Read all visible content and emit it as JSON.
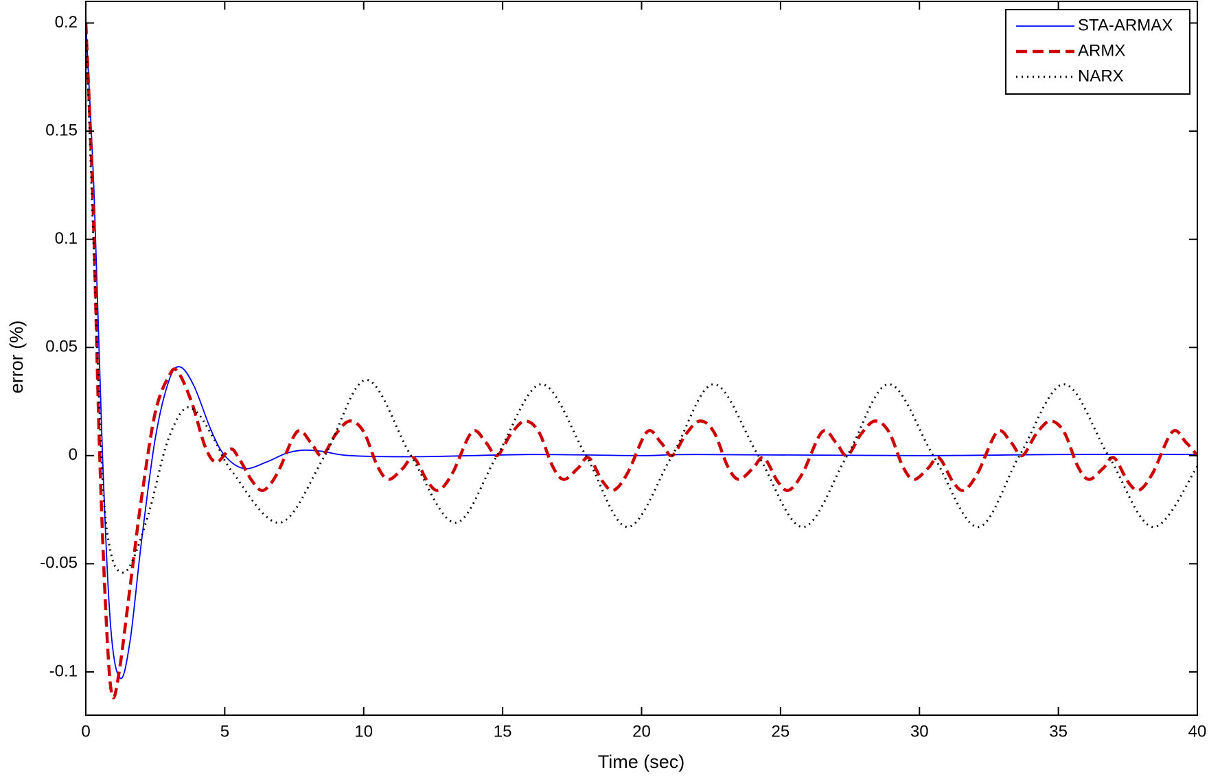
{
  "chart_data": {
    "type": "line",
    "x_label": "Time (sec)",
    "y_label": "error (%)",
    "xlim": [
      0,
      40
    ],
    "ylim": [
      -0.12,
      0.21
    ],
    "xticks": [
      0,
      5,
      10,
      15,
      20,
      25,
      30,
      35,
      40
    ],
    "yticks": [
      -0.1,
      -0.05,
      0,
      0.05,
      0.1,
      0.15,
      0.2
    ],
    "grid": false,
    "legend": "upper right",
    "series": [
      {
        "name": "STA-ARMAX",
        "color": "#0000ff",
        "style": "solid",
        "x": [
          0,
          0.3,
          0.6,
          0.9,
          1.25,
          1.6,
          2.0,
          2.5,
          3.0,
          3.4,
          3.9,
          4.5,
          5.0,
          5.7,
          6.5,
          7.2,
          7.8,
          8.5,
          9.5,
          12,
          16,
          20,
          22,
          30,
          35,
          40
        ],
        "values": [
          0.2,
          0.12,
          0.0,
          -0.08,
          -0.103,
          -0.085,
          -0.04,
          0.008,
          0.035,
          0.041,
          0.032,
          0.012,
          0.0,
          -0.006,
          -0.003,
          0.001,
          0.0025,
          0.002,
          0.0,
          -0.0005,
          0.0005,
          0.0,
          0.0005,
          0.0,
          0.0005,
          0.0005
        ]
      },
      {
        "name": "ARMX",
        "color": "#cc0000",
        "style": "dashed",
        "x": [
          0,
          0.25,
          0.5,
          0.75,
          0.95,
          1.2,
          1.6,
          2.0,
          2.5,
          3.0,
          3.3,
          3.8,
          4.3,
          4.7,
          5.2,
          5.5,
          6.0,
          6.4,
          6.9,
          7.6,
          8.1,
          8.5,
          9.0,
          9.5,
          10.0,
          10.5,
          10.9,
          11.4,
          11.8,
          12.3,
          12.7,
          13.2,
          13.9,
          14.4,
          14.8,
          15.3,
          15.8,
          16.3,
          16.8,
          17.2,
          17.7,
          18.1,
          18.6,
          19.0,
          19.5,
          20.2,
          20.7,
          21.1,
          21.6,
          22.1,
          22.6,
          23.1,
          23.5,
          24.0,
          24.4,
          24.9,
          25.3,
          25.8,
          26.5,
          27.0,
          27.4,
          27.9,
          28.4,
          28.9,
          29.4,
          29.8,
          30.3,
          30.7,
          31.2,
          31.6,
          32.1,
          32.8,
          33.3,
          33.7,
          34.2,
          34.7,
          35.2,
          35.7,
          36.1,
          36.6,
          37.0,
          37.5,
          37.9,
          38.4,
          39.1,
          39.6,
          40.0
        ],
        "values": [
          0.2,
          0.12,
          0.0,
          -0.08,
          -0.111,
          -0.1,
          -0.06,
          -0.02,
          0.02,
          0.037,
          0.039,
          0.025,
          0.004,
          -0.003,
          0.003,
          -0.001,
          -0.012,
          -0.016,
          -0.008,
          0.011,
          0.006,
          0.0,
          0.01,
          0.016,
          0.011,
          -0.005,
          -0.011,
          -0.006,
          -0.001,
          -0.012,
          -0.016,
          -0.008,
          0.011,
          0.006,
          0.0,
          0.01,
          0.016,
          0.011,
          -0.005,
          -0.011,
          -0.006,
          -0.001,
          -0.012,
          -0.016,
          -0.008,
          0.011,
          0.006,
          0.0,
          0.01,
          0.016,
          0.011,
          -0.005,
          -0.011,
          -0.006,
          -0.001,
          -0.012,
          -0.016,
          -0.008,
          0.011,
          0.006,
          0.0,
          0.01,
          0.016,
          0.011,
          -0.005,
          -0.011,
          -0.006,
          -0.001,
          -0.012,
          -0.016,
          -0.008,
          0.011,
          0.006,
          0.0,
          0.01,
          0.016,
          0.011,
          -0.005,
          -0.011,
          -0.006,
          -0.001,
          -0.012,
          -0.016,
          -0.008,
          0.011,
          0.006,
          0.0
        ]
      },
      {
        "name": "NARX",
        "color": "#000000",
        "style": "dotted",
        "x": [
          0,
          0.3,
          0.6,
          0.9,
          1.3,
          1.7,
          2.3,
          2.9,
          3.5,
          4.0,
          4.6,
          5.3,
          7.0,
          8.6,
          10.1,
          11.7,
          13.3,
          14.8,
          16.4,
          18.0,
          19.5,
          21.1,
          22.6,
          24.2,
          25.8,
          27.4,
          28.9,
          30.5,
          32.1,
          33.6,
          35.2,
          36.8,
          38.4,
          40
        ],
        "values": [
          0.2,
          0.09,
          -0.01,
          -0.045,
          -0.054,
          -0.048,
          -0.025,
          0.005,
          0.021,
          0.02,
          0.008,
          -0.008,
          -0.031,
          0.0,
          0.035,
          0.0,
          -0.031,
          0.0,
          0.033,
          0.0,
          -0.033,
          0.0,
          0.033,
          0.0,
          -0.033,
          0.0,
          0.033,
          0.0,
          -0.033,
          0.0,
          0.033,
          0.0,
          -0.033,
          -0.005
        ]
      }
    ]
  }
}
